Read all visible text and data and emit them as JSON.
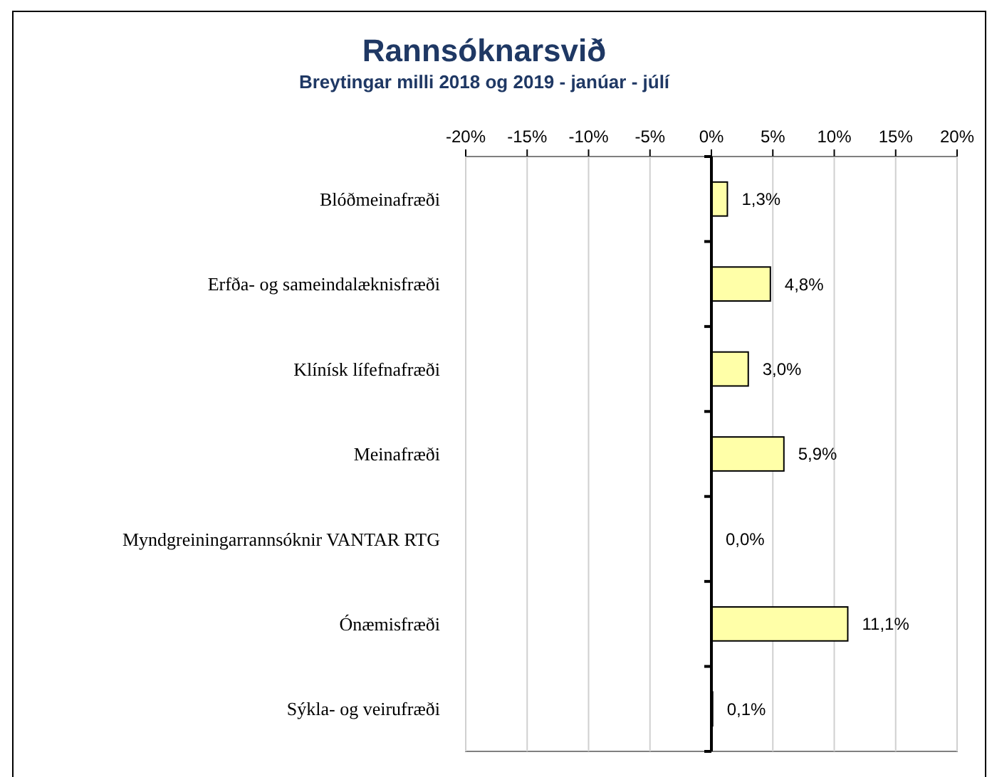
{
  "chart_data": {
    "type": "bar",
    "orientation": "horizontal",
    "title": "Rannsóknarsvið",
    "subtitle": "Breytingar milli 2018 og 2019 - janúar - júlí",
    "categories": [
      "Blóðmeinafræði",
      "Erfða- og sameindalæknisfræði",
      "Klínísk lífefnafræði",
      "Meinafræði",
      "Myndgreiningarrannsóknir VANTAR  RTG",
      "Ónæmisfræði",
      "Sýkla- og veirufræði"
    ],
    "values": [
      1.3,
      4.8,
      3.0,
      5.9,
      0.0,
      11.1,
      0.1
    ],
    "value_labels": [
      "1,3%",
      "4,8%",
      "3,0%",
      "5,9%",
      "0,0%",
      "11,1%",
      "0,1%"
    ],
    "color": "#ffffa8",
    "xlim": [
      -20,
      20
    ],
    "xticks": [
      {
        "value": -20,
        "label": "-20%"
      },
      {
        "value": -15,
        "label": "-15%"
      },
      {
        "value": -10,
        "label": "-10%"
      },
      {
        "value": -5,
        "label": "-5%"
      },
      {
        "value": 0,
        "label": "0%"
      },
      {
        "value": 5,
        "label": "5%"
      },
      {
        "value": 10,
        "label": "10%"
      },
      {
        "value": 15,
        "label": "15%"
      },
      {
        "value": 20,
        "label": "20%"
      }
    ],
    "grid": "x"
  }
}
